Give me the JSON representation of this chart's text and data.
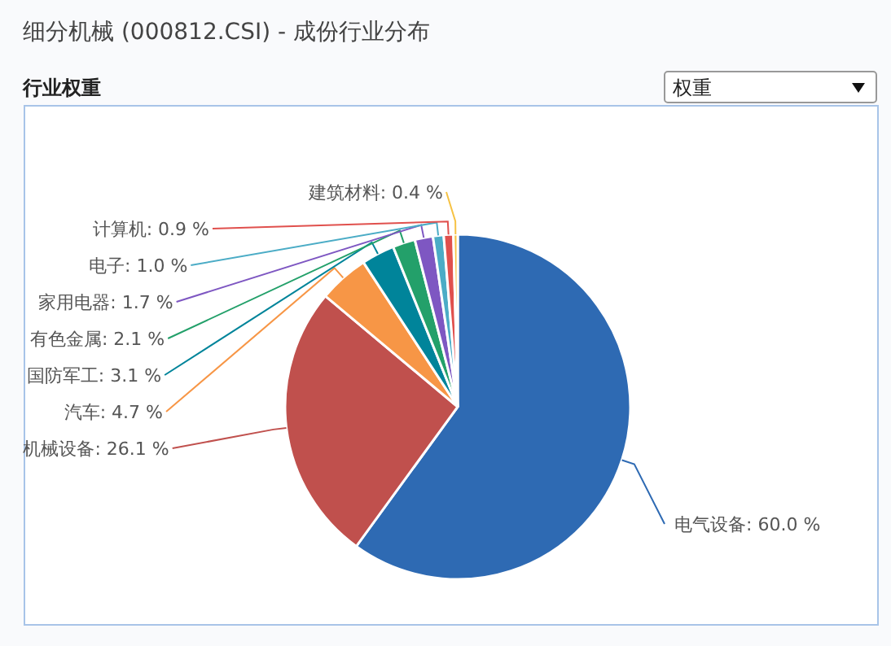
{
  "chart_data": {
    "type": "pie",
    "title": "细分机械 (000812.CSI) - 成份行业分布",
    "subtitle": "行业权重",
    "annotations": [
      "权重"
    ],
    "categories": [
      "电气设备",
      "机械设备",
      "汽车",
      "国防军工",
      "有色金属",
      "家用电器",
      "电子",
      "计算机",
      "建筑材料"
    ],
    "values": [
      60.0,
      26.1,
      4.7,
      3.1,
      2.1,
      1.7,
      1.0,
      0.9,
      0.4
    ],
    "colors": [
      "#2e6ab3",
      "#c0504d",
      "#f79646",
      "#00849a",
      "#23a06a",
      "#7e57c2",
      "#4bacc6",
      "#e0504d",
      "#f6c244"
    ],
    "value_labels": [
      ": 60.0 %",
      ": 26.1 %",
      ": 4.7 %",
      ": 3.1 %",
      ": 2.1 %",
      ": 1.7 %",
      ": 1.0 %",
      ": 0.9 %",
      ": 0.4 %"
    ]
  }
}
